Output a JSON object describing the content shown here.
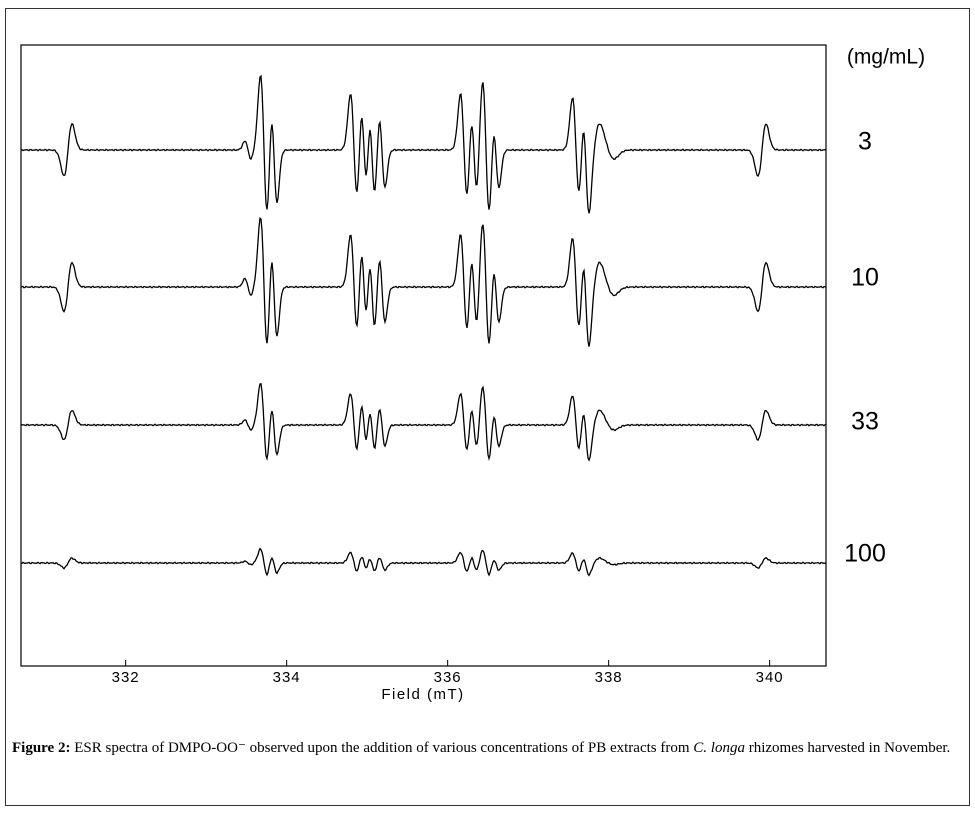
{
  "figure": {
    "chart": {
      "type": "line",
      "xlabel": "Field (mT)",
      "xlim": [
        330.7,
        340.7
      ],
      "xticks": [
        332,
        334,
        336,
        338,
        340
      ],
      "unit_label": "(mg/mL)",
      "traces": [
        "3",
        "10",
        "33",
        "100"
      ]
    },
    "caption": {
      "label": "Figure 2:",
      "text_1": "ESR spectra of DMPO-OO⁻ observed upon the addition of various concentrations of PB extracts from",
      "species": "C. longa",
      "text_2": "rhizomes harvested in November."
    }
  }
}
